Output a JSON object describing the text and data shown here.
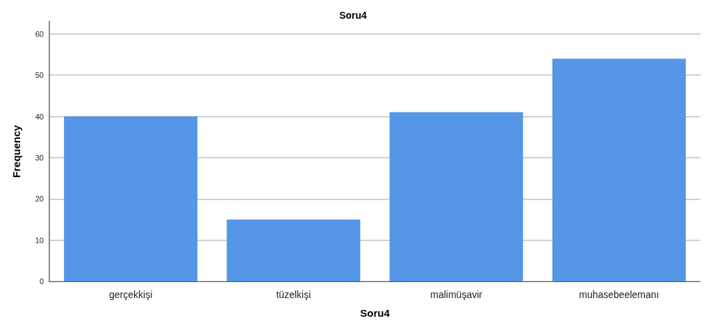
{
  "chart_data": {
    "type": "bar",
    "title": "Soru4",
    "xlabel": "Soru4",
    "ylabel": "Frequency",
    "categories": [
      "gerçekkişi",
      "tüzelkişi",
      "malimüşavir",
      "muhasebeelemanı"
    ],
    "values": [
      40,
      15,
      41,
      54
    ],
    "color": "#5596e6",
    "ylim": [
      0,
      63
    ],
    "yticks": [
      0,
      10,
      20,
      30,
      40,
      50,
      60
    ],
    "grid": "y"
  }
}
